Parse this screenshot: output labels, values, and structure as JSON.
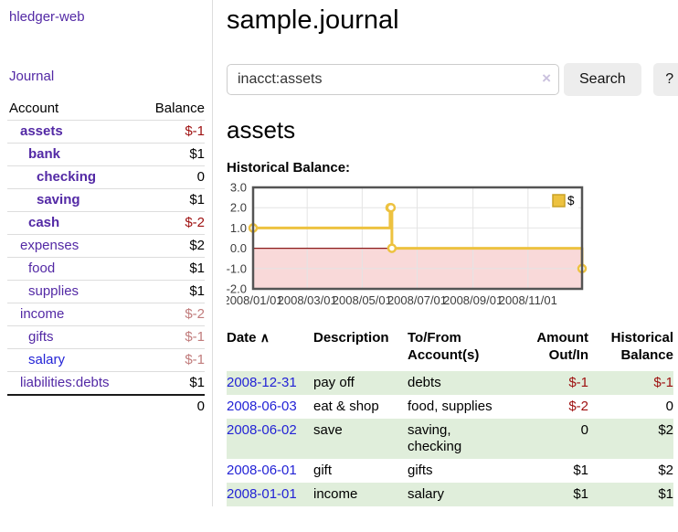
{
  "colors": {
    "link_visited_purple": "#5329a5",
    "link_unvisited_blue": "#2323d6",
    "negative_strong_red": "#9e1010",
    "negative_soft_red": "#c17c7c",
    "row_stripe_green": "#e0eedb",
    "chart_line_gold": "#edc240",
    "chart_negative_region_pink": "#f9d9d9",
    "chart_zero_line_red": "#8b1a1a"
  },
  "sidebar": {
    "brand": "hledger-web",
    "journal_link": "Journal",
    "accounts": {
      "col_account": "Account",
      "col_balance": "Balance",
      "rows": [
        {
          "name": "assets",
          "depth": 1,
          "bold": true,
          "balance": "$-1",
          "balance_tone": "neg-strong",
          "link_tone": "purple"
        },
        {
          "name": "bank",
          "depth": 2,
          "bold": true,
          "balance": "$1",
          "balance_tone": "normal",
          "link_tone": "purple"
        },
        {
          "name": "checking",
          "depth": 3,
          "bold": true,
          "balance": "0",
          "balance_tone": "normal",
          "link_tone": "purple"
        },
        {
          "name": "saving",
          "depth": 3,
          "bold": true,
          "balance": "$1",
          "balance_tone": "normal",
          "link_tone": "purple"
        },
        {
          "name": "cash",
          "depth": 2,
          "bold": true,
          "balance": "$-2",
          "balance_tone": "neg-strong",
          "link_tone": "purple"
        },
        {
          "name": "expenses",
          "depth": 1,
          "bold": false,
          "balance": "$2",
          "balance_tone": "normal",
          "link_tone": "purple"
        },
        {
          "name": "food",
          "depth": 2,
          "bold": false,
          "balance": "$1",
          "balance_tone": "normal",
          "link_tone": "purple"
        },
        {
          "name": "supplies",
          "depth": 2,
          "bold": false,
          "balance": "$1",
          "balance_tone": "normal",
          "link_tone": "purple"
        },
        {
          "name": "income",
          "depth": 1,
          "bold": false,
          "balance": "$-2",
          "balance_tone": "neg-soft",
          "link_tone": "purple"
        },
        {
          "name": "gifts",
          "depth": 2,
          "bold": false,
          "balance": "$-1",
          "balance_tone": "neg-soft",
          "link_tone": "purple"
        },
        {
          "name": "salary",
          "depth": 2,
          "bold": false,
          "balance": "$-1",
          "balance_tone": "neg-soft",
          "link_tone": "blue"
        },
        {
          "name": "liabilities:debts",
          "depth": 1,
          "bold": false,
          "balance": "$1",
          "balance_tone": "normal",
          "link_tone": "purple"
        }
      ],
      "total": "0"
    }
  },
  "main": {
    "title": "sample.journal",
    "search": {
      "value": "inacct:assets",
      "clear_icon": "×",
      "search_button": "Search",
      "help_button": "?"
    },
    "account_heading": "assets",
    "chart_label": "Historical Balance:",
    "register": {
      "headers": {
        "date": "Date",
        "sort_indicator": "∧",
        "description": "Description",
        "tofrom": "To/From\nAccount(s)",
        "amount": "Amount\nOut/In",
        "balance": "Historical\nBalance"
      },
      "rows": [
        {
          "date": "2008-12-31",
          "description": "pay off",
          "tofrom": "debts",
          "amount": "$-1",
          "amount_tone": "neg-strong",
          "balance": "$-1",
          "balance_tone": "neg-strong",
          "stripe": true
        },
        {
          "date": "2008-06-03",
          "description": "eat & shop",
          "tofrom": "food, supplies",
          "amount": "$-2",
          "amount_tone": "neg-strong",
          "balance": "0",
          "balance_tone": "normal",
          "stripe": false
        },
        {
          "date": "2008-06-02",
          "description": "save",
          "tofrom": "saving,\nchecking",
          "amount": "0",
          "amount_tone": "normal",
          "balance": "$2",
          "balance_tone": "normal",
          "stripe": true
        },
        {
          "date": "2008-06-01",
          "description": "gift",
          "tofrom": "gifts",
          "amount": "$1",
          "amount_tone": "normal",
          "balance": "$2",
          "balance_tone": "normal",
          "stripe": false
        },
        {
          "date": "2008-01-01",
          "description": "income",
          "tofrom": "salary",
          "amount": "$1",
          "amount_tone": "normal",
          "balance": "$1",
          "balance_tone": "normal",
          "stripe": true
        }
      ]
    }
  },
  "chart_data": {
    "type": "line",
    "step": true,
    "title": "Historical Balance:",
    "x_range": [
      "2008-01-01",
      "2008-12-31"
    ],
    "ylim": [
      -2,
      3
    ],
    "yticks": [
      3.0,
      2.0,
      1.0,
      0.0,
      -1.0,
      -2.0
    ],
    "ytick_labels": [
      "3.0",
      "2.0",
      "1.0",
      "0.0",
      "-1.0",
      "-2.0"
    ],
    "xtick_labels": [
      "2008/01/01",
      "2008/03/01",
      "2008/05/01",
      "2008/07/01",
      "2008/09/01",
      "2008/11/01"
    ],
    "series": [
      {
        "name": "$",
        "color": "#edc240",
        "points": [
          [
            "2008-01-01",
            1
          ],
          [
            "2008-06-01",
            2
          ],
          [
            "2008-06-02",
            2
          ],
          [
            "2008-06-03",
            0
          ],
          [
            "2008-12-31",
            -1
          ]
        ]
      }
    ],
    "legend": {
      "position": "top-right",
      "label": "$"
    },
    "negative_region": {
      "from": 0,
      "to": -2,
      "fill": "#f9d9d9",
      "zero_line_color": "#8b1a1a"
    },
    "grid": true
  }
}
